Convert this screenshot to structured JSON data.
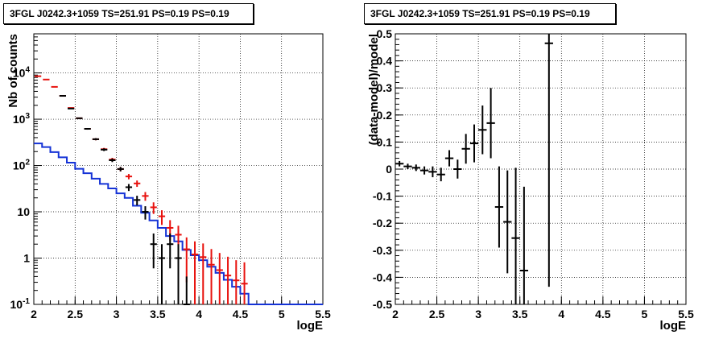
{
  "chart_data": [
    {
      "type": "step-histogram with error bars",
      "title": "3FGL J0242.3+1059 TS=251.91 PS=0.19 PS=0.19",
      "xlabel": "logE",
      "ylabel": "Nb of counts",
      "xlim": [
        2,
        5.5
      ],
      "ylim": [
        0.1,
        70000
      ],
      "yscale": "log",
      "grid": true,
      "x_ticks": [
        "2",
        "2.5",
        "3",
        "3.5",
        "4",
        "4.5",
        "5",
        "5.5"
      ],
      "y_ticks": [
        {
          "v": 0.1,
          "label": "10^-1",
          "base": "10",
          "exp": "-1"
        },
        {
          "v": 1,
          "label": "1",
          "base": "1",
          "exp": ""
        },
        {
          "v": 10,
          "label": "10",
          "base": "10",
          "exp": ""
        },
        {
          "v": 100,
          "label": "10^2",
          "base": "10",
          "exp": "2"
        },
        {
          "v": 1000,
          "label": "10^3",
          "base": "10",
          "exp": "3"
        },
        {
          "v": 10000,
          "label": "10^4",
          "base": "10",
          "exp": "4"
        }
      ],
      "bin_width": 0.1,
      "colors": {
        "data": "#000000",
        "model": "#e8120e",
        "background": "#1533d6"
      },
      "series": [
        {
          "role": "model",
          "type": "errorbar",
          "x": [
            2.05,
            2.15,
            2.25,
            2.35,
            2.45,
            2.55,
            2.65,
            2.75,
            2.85,
            2.95,
            3.05,
            3.15,
            3.25,
            3.35,
            3.45,
            3.55,
            3.65,
            3.75,
            3.85,
            3.95,
            4.05,
            4.15,
            4.25,
            4.35,
            4.45,
            4.55
          ],
          "y": [
            8500,
            7200,
            5000,
            3200,
            1750,
            1050,
            620,
            370,
            225,
            135,
            84,
            58,
            41,
            22,
            12.5,
            8,
            4.5,
            3.2,
            1.55,
            1.2,
            1.05,
            0.72,
            0.55,
            0.42,
            0.33,
            0.28
          ],
          "err": [
            92,
            85,
            71,
            57,
            42,
            32,
            25,
            19,
            15,
            11.6,
            9.2,
            7.6,
            6.4,
            4.7,
            3.5,
            2.8,
            2.1,
            1.8,
            1.25,
            1.1,
            1.02,
            0.85,
            0.74,
            0.65,
            0.57,
            0.53
          ]
        },
        {
          "role": "data",
          "type": "errorbar",
          "x": [
            2.35,
            2.45,
            2.55,
            2.65,
            2.75,
            2.85,
            2.95,
            3.05,
            3.15,
            3.25,
            3.35,
            3.45,
            3.55,
            3.65,
            3.75,
            3.85
          ],
          "y": [
            3200,
            1700,
            1050,
            620,
            370,
            220,
            130,
            84,
            34,
            18,
            10,
            2,
            1,
            2,
            1,
            0.1
          ],
          "err": [
            57,
            41,
            32,
            25,
            19,
            14.8,
            11.4,
            9.2,
            5.8,
            4.2,
            3.2,
            1.4,
            1,
            1.4,
            1,
            0.3
          ]
        },
        {
          "role": "background",
          "type": "step",
          "x_edges": [
            2.0,
            2.1,
            2.2,
            2.3,
            2.4,
            2.5,
            2.6,
            2.7,
            2.8,
            2.9,
            3.0,
            3.1,
            3.2,
            3.3,
            3.4,
            3.5,
            3.6,
            3.7,
            3.8,
            3.9,
            4.0,
            4.1,
            4.2,
            4.3,
            4.4,
            4.5,
            4.6,
            5.5
          ],
          "y": [
            300,
            250,
            195,
            150,
            115,
            85,
            68,
            52,
            40,
            32,
            25,
            20,
            13.5,
            9.5,
            6.5,
            4.5,
            3,
            2.3,
            1.5,
            1.15,
            0.9,
            0.65,
            0.48,
            0.34,
            0.24,
            0.17,
            0.1
          ]
        }
      ]
    },
    {
      "type": "errorbar",
      "title": "3FGL J0242.3+1059 TS=251.91 PS=0.19 PS=0.19",
      "xlabel": "logE",
      "ylabel": "(data-model)/model",
      "xlim": [
        2,
        5.5
      ],
      "ylim": [
        -0.5,
        0.5
      ],
      "grid": true,
      "x_ticks": [
        "2",
        "2.5",
        "3",
        "3.5",
        "4",
        "4.5",
        "5",
        "5.5"
      ],
      "y_ticks": [
        "-0.5",
        "-0.4",
        "-0.3",
        "-0.2",
        "-0.1",
        "0",
        "0.1",
        "0.2",
        "0.3",
        "0.4",
        "0.5"
      ],
      "colors": {
        "data": "#000000"
      },
      "series": [
        {
          "x": [
            2.05,
            2.15,
            2.25,
            2.35,
            2.45,
            2.55,
            2.65,
            2.75,
            2.85,
            2.95,
            3.05,
            3.15,
            3.25,
            3.35,
            3.45,
            3.55,
            3.85
          ],
          "y": [
            0.02,
            0.01,
            0.005,
            -0.005,
            -0.01,
            -0.02,
            0.04,
            0.0,
            0.075,
            0.095,
            0.145,
            0.17,
            -0.14,
            -0.195,
            -0.255,
            -0.375,
            0.465
          ],
          "err": [
            0.01,
            0.01,
            0.012,
            0.015,
            0.02,
            0.025,
            0.03,
            0.035,
            0.055,
            0.07,
            0.09,
            0.13,
            0.15,
            0.19,
            0.26,
            0.31,
            0.9
          ]
        }
      ]
    }
  ]
}
